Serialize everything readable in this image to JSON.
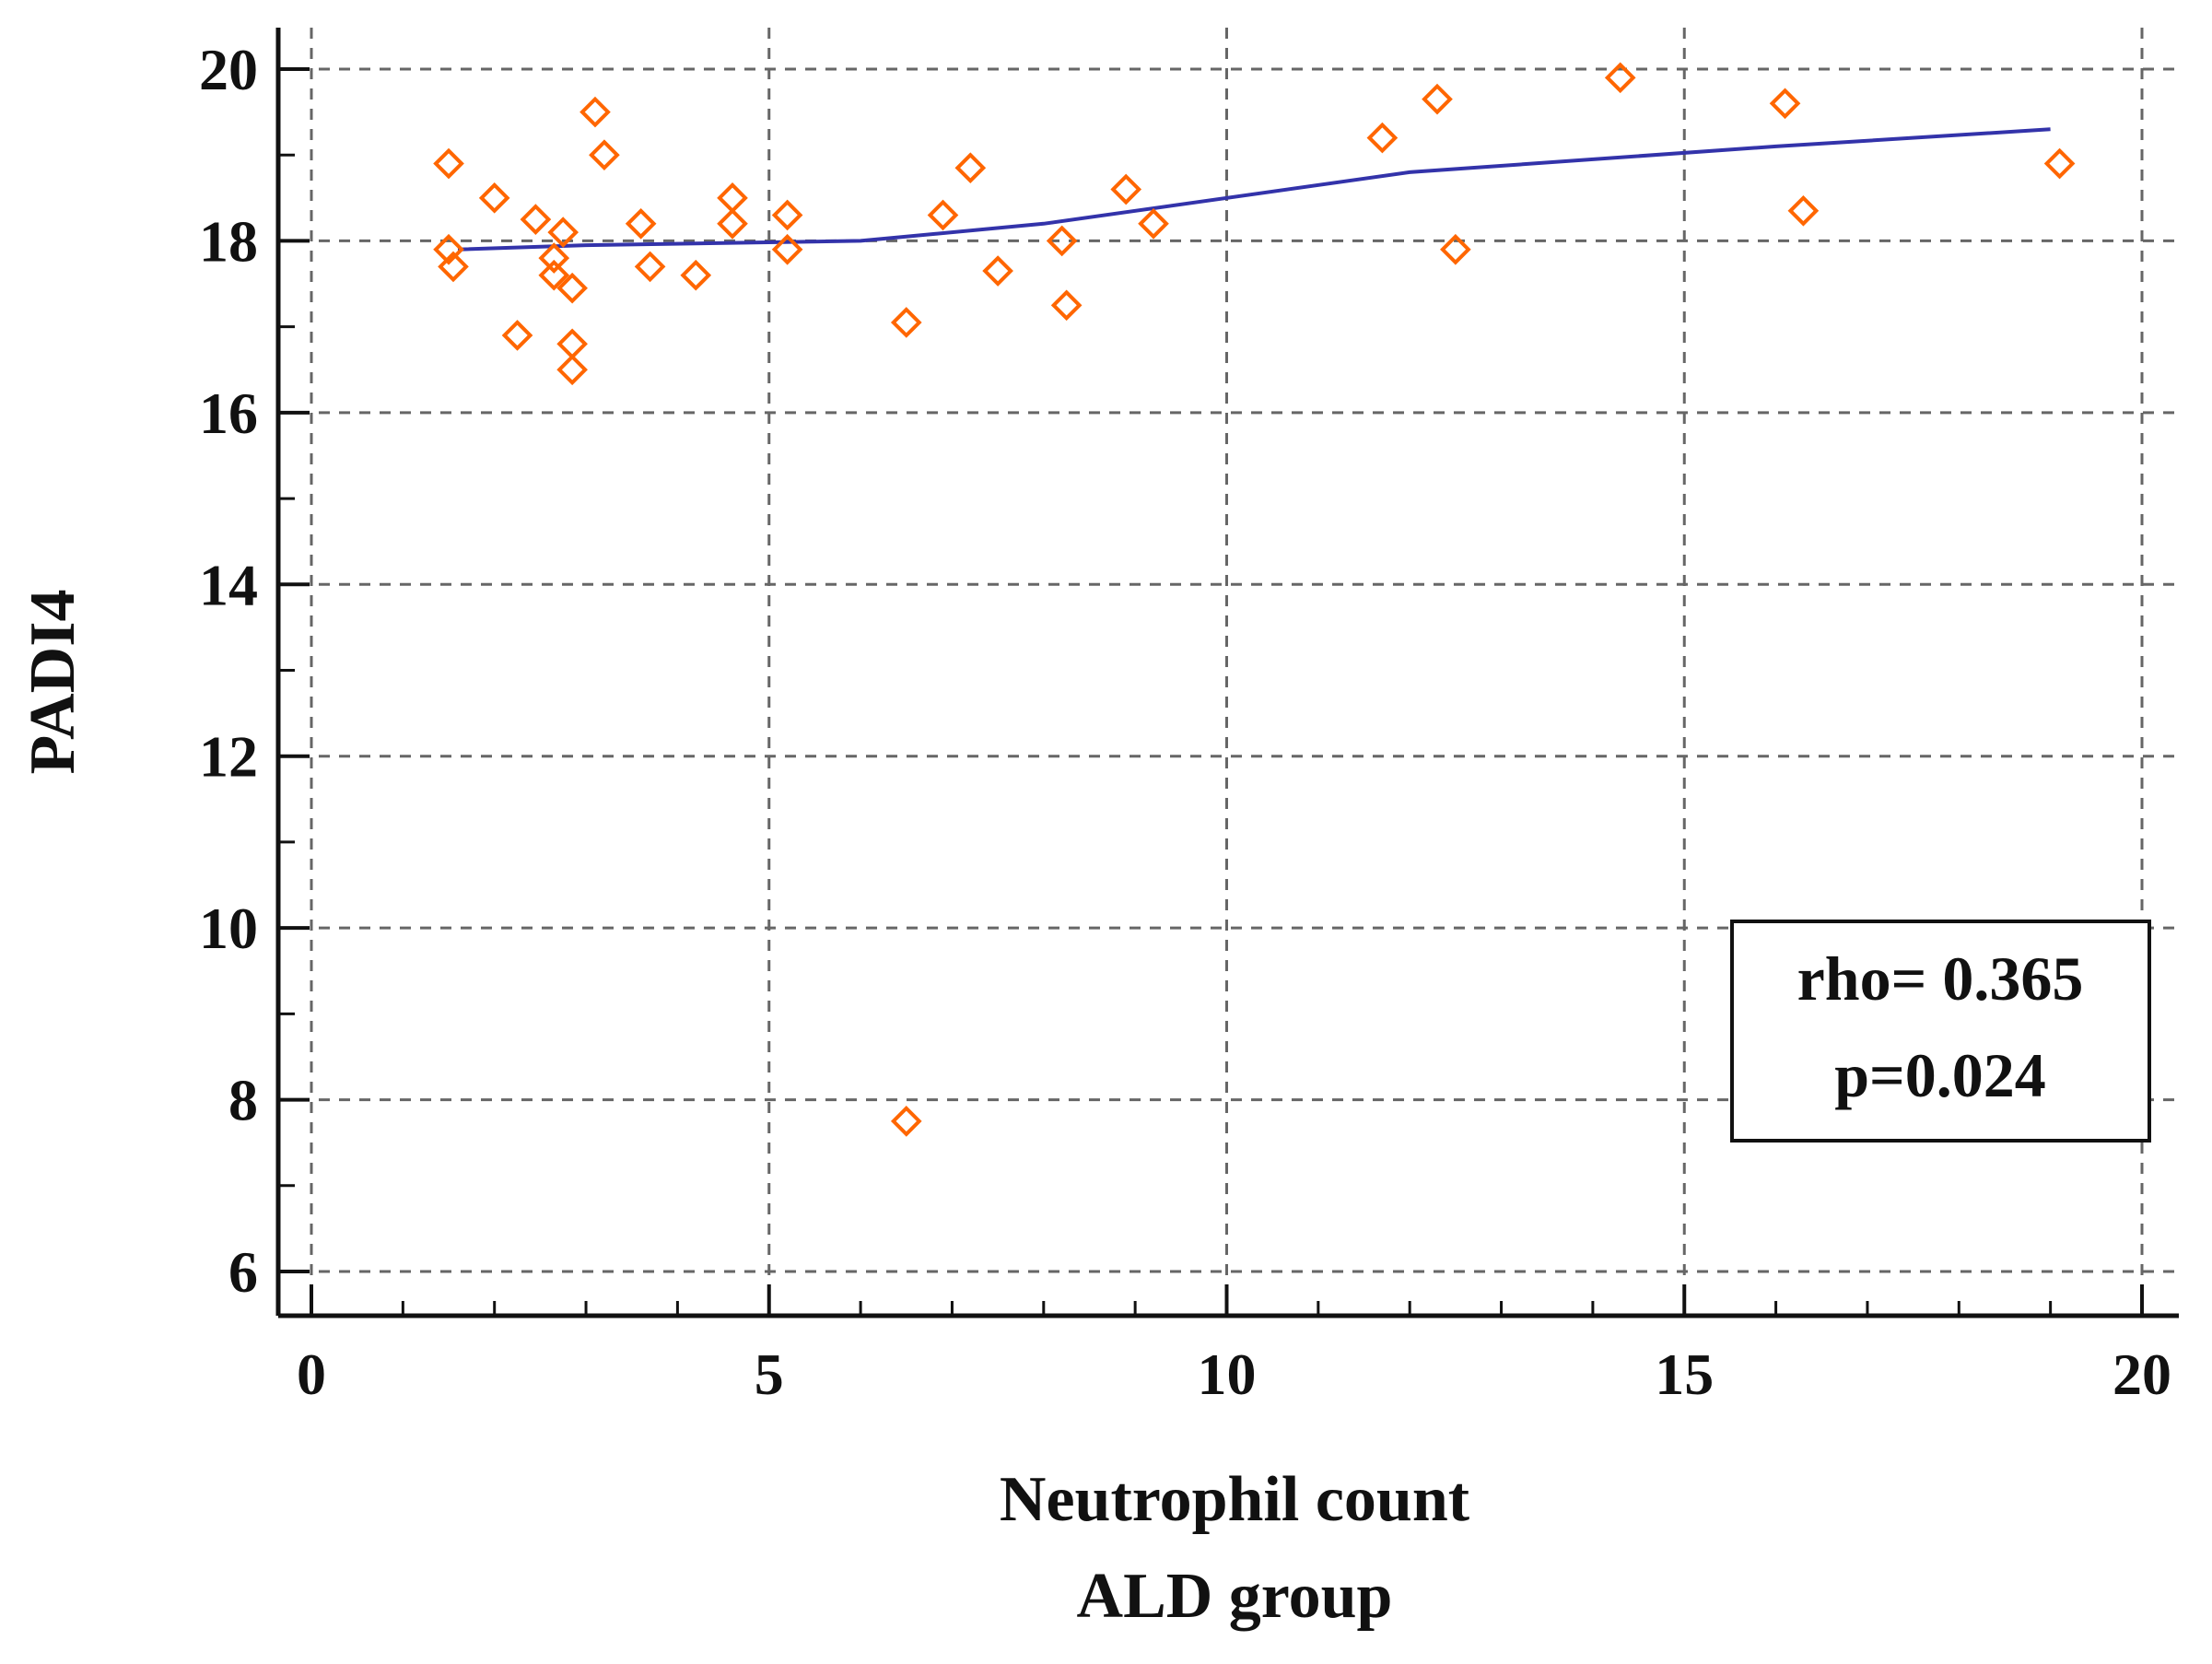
{
  "chart_data": {
    "type": "scatter",
    "title": "",
    "xlabel": "Neutrophil count",
    "xlabel_sub": "ALD group",
    "ylabel": "PADI4",
    "xlim": [
      0,
      20
    ],
    "ylim": [
      6,
      20
    ],
    "x_ticks": [
      0,
      5,
      10,
      15,
      20
    ],
    "y_ticks": [
      6,
      8,
      10,
      12,
      14,
      16,
      18,
      20
    ],
    "x_tick_labels": [
      "0",
      "5",
      "10",
      "15",
      "20"
    ],
    "y_tick_labels": [
      "6",
      "8",
      "10",
      "12",
      "14",
      "16",
      "18",
      "20"
    ],
    "grid": true,
    "annotation": {
      "line1": "rho= 0.365",
      "line2": "p=0.024",
      "position": "bottom-right"
    },
    "colors": {
      "points": "#ff6600",
      "trend": "#3333aa",
      "grid": "#666666",
      "axis": "#111111"
    },
    "series": [
      {
        "name": "ALD group",
        "marker": "diamond-open",
        "points": [
          {
            "x": 1.5,
            "y": 18.9
          },
          {
            "x": 1.5,
            "y": 17.9
          },
          {
            "x": 1.55,
            "y": 17.7
          },
          {
            "x": 2.0,
            "y": 18.5
          },
          {
            "x": 2.25,
            "y": 16.9
          },
          {
            "x": 2.45,
            "y": 18.25
          },
          {
            "x": 2.65,
            "y": 17.8
          },
          {
            "x": 2.65,
            "y": 17.6
          },
          {
            "x": 2.75,
            "y": 18.1
          },
          {
            "x": 2.85,
            "y": 17.45
          },
          {
            "x": 2.85,
            "y": 16.8
          },
          {
            "x": 2.85,
            "y": 16.5
          },
          {
            "x": 3.1,
            "y": 19.5
          },
          {
            "x": 3.2,
            "y": 19.0
          },
          {
            "x": 3.6,
            "y": 18.2
          },
          {
            "x": 3.7,
            "y": 17.7
          },
          {
            "x": 4.2,
            "y": 17.6
          },
          {
            "x": 4.6,
            "y": 18.5
          },
          {
            "x": 4.6,
            "y": 18.2
          },
          {
            "x": 5.2,
            "y": 18.3
          },
          {
            "x": 5.2,
            "y": 17.9
          },
          {
            "x": 6.5,
            "y": 17.05
          },
          {
            "x": 6.5,
            "y": 7.75
          },
          {
            "x": 6.9,
            "y": 18.3
          },
          {
            "x": 7.2,
            "y": 18.85
          },
          {
            "x": 7.5,
            "y": 17.65
          },
          {
            "x": 8.2,
            "y": 18.0
          },
          {
            "x": 8.25,
            "y": 17.25
          },
          {
            "x": 8.9,
            "y": 18.6
          },
          {
            "x": 9.2,
            "y": 18.2
          },
          {
            "x": 11.7,
            "y": 19.2
          },
          {
            "x": 12.3,
            "y": 19.65
          },
          {
            "x": 12.5,
            "y": 17.9
          },
          {
            "x": 14.3,
            "y": 19.9
          },
          {
            "x": 16.1,
            "y": 19.6
          },
          {
            "x": 16.3,
            "y": 18.35
          },
          {
            "x": 19.1,
            "y": 18.9
          }
        ]
      }
    ],
    "trend_line": [
      {
        "x": 1.6,
        "y": 17.9
      },
      {
        "x": 3.0,
        "y": 17.95
      },
      {
        "x": 6.0,
        "y": 18.0
      },
      {
        "x": 8.0,
        "y": 18.2
      },
      {
        "x": 12.0,
        "y": 18.8
      },
      {
        "x": 16.0,
        "y": 19.1
      },
      {
        "x": 19.0,
        "y": 19.3
      }
    ]
  }
}
